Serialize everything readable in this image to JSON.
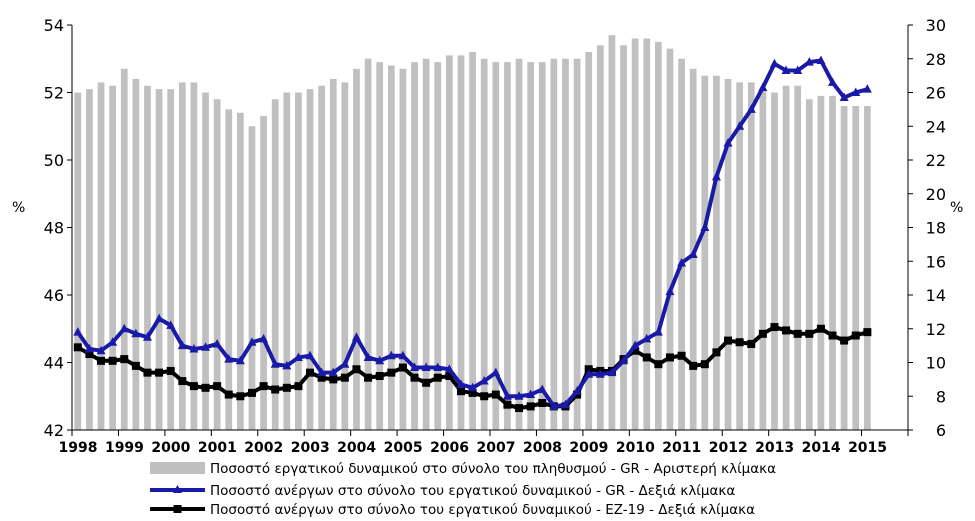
{
  "chart_data": {
    "type": "bar+line",
    "title": "",
    "left_axis": {
      "label": "%",
      "ylim": [
        42,
        54
      ],
      "ticks": [
        42,
        44,
        46,
        48,
        50,
        52,
        54
      ]
    },
    "right_axis": {
      "label": "%",
      "ylim": [
        6,
        30
      ],
      "ticks": [
        6,
        8,
        10,
        12,
        14,
        16,
        18,
        20,
        22,
        24,
        26,
        28,
        30
      ]
    },
    "x_tick_labels": [
      "1998",
      "1999",
      "2000",
      "2001",
      "2002",
      "2003",
      "2004",
      "2005",
      "2006",
      "2007",
      "2008",
      "2009",
      "2010",
      "2011",
      "2012",
      "2013",
      "2014",
      "2015"
    ],
    "x_start": 1998,
    "points_per_year": 4,
    "series": [
      {
        "name": "Ποσοστό εργατικού δυναμικού στο σύνολο του πληθυσμού - GR - Αριστερή κλίμακα",
        "kind": "bar",
        "axis": "left",
        "color": "#c0c0c0",
        "values": [
          52.0,
          52.1,
          52.3,
          52.2,
          52.7,
          52.4,
          52.2,
          52.1,
          52.1,
          52.3,
          52.3,
          52.0,
          51.8,
          51.5,
          51.4,
          51.0,
          51.3,
          51.8,
          52.0,
          52.0,
          52.1,
          52.2,
          52.4,
          52.3,
          52.7,
          53.0,
          52.9,
          52.8,
          52.7,
          52.9,
          53.0,
          52.9,
          53.1,
          53.1,
          53.2,
          53.0,
          52.9,
          52.9,
          53.0,
          52.9,
          52.9,
          53.0,
          53.0,
          53.0,
          53.2,
          53.4,
          53.7,
          53.4,
          53.6,
          53.6,
          53.5,
          53.3,
          53.0,
          52.7,
          52.5,
          52.5,
          52.4,
          52.3,
          52.3,
          52.1,
          52.0,
          52.2,
          52.2,
          51.8,
          51.9,
          51.9,
          51.6,
          51.6,
          51.6
        ]
      },
      {
        "name": "Ποσοστό ανέργων στο σύνολο του εργατικού δυναμικού - GR - Δεξιά κλίμακα",
        "kind": "line",
        "axis": "right",
        "color": "#1a1aa8",
        "marker": "triangle",
        "values": [
          11.8,
          10.8,
          10.7,
          11.2,
          12.0,
          11.7,
          11.5,
          12.6,
          12.2,
          11.0,
          10.8,
          10.9,
          11.1,
          10.2,
          10.1,
          11.2,
          11.4,
          9.9,
          9.8,
          10.3,
          10.4,
          9.4,
          9.4,
          9.9,
          11.5,
          10.3,
          10.1,
          10.4,
          10.4,
          9.7,
          9.7,
          9.7,
          9.6,
          8.7,
          8.5,
          8.9,
          9.4,
          8.0,
          8.0,
          8.1,
          8.4,
          7.4,
          7.5,
          8.3,
          9.3,
          9.3,
          9.4,
          10.1,
          11.0,
          11.4,
          11.8,
          14.2,
          15.9,
          16.4,
          18.0,
          21.0,
          23.0,
          24.0,
          25.0,
          26.3,
          27.7,
          27.3,
          27.3,
          27.8,
          27.9,
          26.6,
          25.7,
          26.0,
          26.2
        ]
      },
      {
        "name": "Ποσοστό ανέργων στο σύνολο του εργατικού δυναμικού - EZ-19 - Δεξιά κλίμακα",
        "kind": "line",
        "axis": "right",
        "color": "#000000",
        "marker": "square",
        "values": [
          10.9,
          10.5,
          10.1,
          10.1,
          10.2,
          9.8,
          9.4,
          9.4,
          9.5,
          8.9,
          8.6,
          8.5,
          8.6,
          8.1,
          8.0,
          8.2,
          8.6,
          8.4,
          8.5,
          8.6,
          9.4,
          9.1,
          9.0,
          9.1,
          9.6,
          9.1,
          9.2,
          9.4,
          9.7,
          9.1,
          8.8,
          9.1,
          9.2,
          8.3,
          8.2,
          8.0,
          8.1,
          7.5,
          7.3,
          7.4,
          7.6,
          7.4,
          7.4,
          8.1,
          9.6,
          9.5,
          9.5,
          10.2,
          10.7,
          10.3,
          9.9,
          10.3,
          10.4,
          9.8,
          9.9,
          10.6,
          11.3,
          11.2,
          11.1,
          11.7,
          12.1,
          11.9,
          11.7,
          11.7,
          12.0,
          11.6,
          11.3,
          11.6,
          11.8
        ]
      }
    ]
  }
}
